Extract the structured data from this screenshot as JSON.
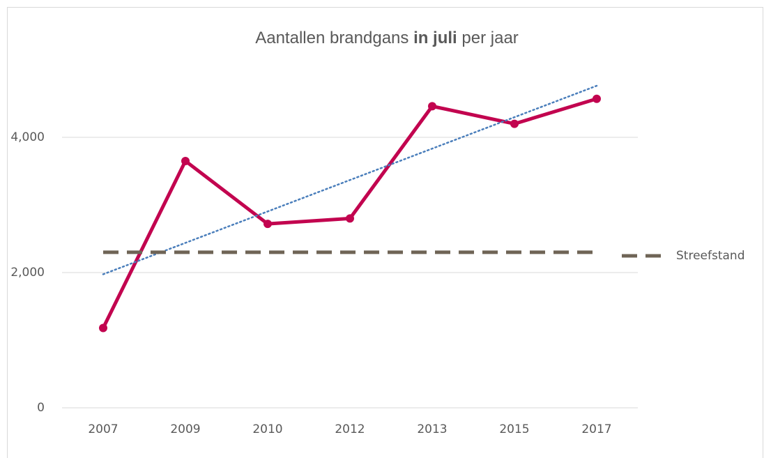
{
  "chart_data": {
    "type": "line",
    "title": [
      {
        "text": "Aantallen brandgans "
      },
      {
        "text": "in juli",
        "bold": true
      },
      {
        "text": " per jaar"
      }
    ],
    "categories": [
      "2007",
      "2009",
      "2010",
      "2012",
      "2013",
      "2015",
      "2017"
    ],
    "series": [
      {
        "color": "#c2044f",
        "values": [
          1180,
          3650,
          2720,
          2800,
          4460,
          4200,
          4570
        ],
        "markers": true,
        "trendline": {
          "type": "linear",
          "color": "#4a7ebb",
          "style": "dotted"
        }
      },
      {
        "name": "Streefstand",
        "color": "#6f6456",
        "values": [
          2300,
          2300,
          2300,
          2300,
          2300,
          2300,
          2300
        ],
        "style": "dashed"
      }
    ],
    "ylim": [
      0,
      5000
    ],
    "yticks": [
      0,
      {
        "value": 2000,
        "label": "2,000"
      },
      {
        "value": 4000,
        "label": "4,000"
      }
    ],
    "grid": true,
    "legend": "right"
  }
}
